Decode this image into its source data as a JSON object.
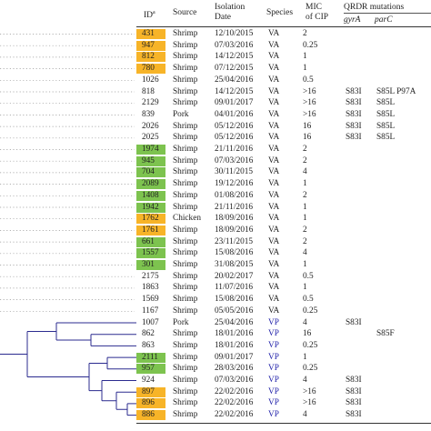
{
  "headers": {
    "id": "ID",
    "id_superscript": "a",
    "source": "Source",
    "isolation_date_line1": "Isolation",
    "isolation_date_line2": "Date",
    "species": "Species",
    "mic_line1": "MIC",
    "mic_line2": "of CIP",
    "qrdr": "QRDR mutations",
    "gyra": "gyrA",
    "parc": "parC"
  },
  "colors": {
    "orange": "#f7b428",
    "green": "#7dc34f",
    "vp_text": "#2222aa",
    "tree_line": "#2b2b8f",
    "tree_dots": "#999999"
  },
  "rows": [
    {
      "id": "431",
      "highlight": "orange",
      "source": "Shrimp",
      "date": "12/10/2015",
      "species": "VA",
      "mic": "2",
      "gyra": "",
      "parc": ""
    },
    {
      "id": "947",
      "highlight": "orange",
      "source": "Shrimp",
      "date": "07/03/2016",
      "species": "VA",
      "mic": "0.25",
      "gyra": "",
      "parc": ""
    },
    {
      "id": "812",
      "highlight": "orange",
      "source": "Shrimp",
      "date": "14/12/2015",
      "species": "VA",
      "mic": "1",
      "gyra": "",
      "parc": ""
    },
    {
      "id": "780",
      "highlight": "orange",
      "source": "Shrimp",
      "date": "07/12/2015",
      "species": "VA",
      "mic": "1",
      "gyra": "",
      "parc": ""
    },
    {
      "id": "1026",
      "highlight": "",
      "source": "Shrimp",
      "date": "25/04/2016",
      "species": "VA",
      "mic": "0.5",
      "gyra": "",
      "parc": ""
    },
    {
      "id": "818",
      "highlight": "",
      "source": "Shrimp",
      "date": "14/12/2015",
      "species": "VA",
      "mic": ">16",
      "gyra": "S83I",
      "parc": "S85L P97A"
    },
    {
      "id": "2129",
      "highlight": "",
      "source": "Shrimp",
      "date": "09/01/2017",
      "species": "VA",
      "mic": ">16",
      "gyra": "S83I",
      "parc": "S85L"
    },
    {
      "id": "839",
      "highlight": "",
      "source": "Pork",
      "date": "04/01/2016",
      "species": "VA",
      "mic": ">16",
      "gyra": "S83I",
      "parc": "S85L"
    },
    {
      "id": "2026",
      "highlight": "",
      "source": "Shrimp",
      "date": "05/12/2016",
      "species": "VA",
      "mic": "16",
      "gyra": "S83I",
      "parc": "S85L"
    },
    {
      "id": "2025",
      "highlight": "",
      "source": "Shrimp",
      "date": "05/12/2016",
      "species": "VA",
      "mic": "16",
      "gyra": "S83I",
      "parc": "S85L"
    },
    {
      "id": "1974",
      "highlight": "green",
      "source": "Shrimp",
      "date": "21/11/2016",
      "species": "VA",
      "mic": "2",
      "gyra": "",
      "parc": ""
    },
    {
      "id": "945",
      "highlight": "green",
      "source": "Shrimp",
      "date": "07/03/2016",
      "species": "VA",
      "mic": "2",
      "gyra": "",
      "parc": ""
    },
    {
      "id": "704",
      "highlight": "green",
      "source": "Shrimp",
      "date": "30/11/2015",
      "species": "VA",
      "mic": "4",
      "gyra": "",
      "parc": ""
    },
    {
      "id": "2089",
      "highlight": "green",
      "source": "Shrimp",
      "date": "19/12/2016",
      "species": "VA",
      "mic": "1",
      "gyra": "",
      "parc": ""
    },
    {
      "id": "1408",
      "highlight": "green",
      "source": "Shrimp",
      "date": "01/08/2016",
      "species": "VA",
      "mic": "2",
      "gyra": "",
      "parc": ""
    },
    {
      "id": "1942",
      "highlight": "green",
      "source": "Shrimp",
      "date": "21/11/2016",
      "species": "VA",
      "mic": "1",
      "gyra": "",
      "parc": ""
    },
    {
      "id": "1762",
      "highlight": "orange",
      "source": "Chicken",
      "date": "18/09/2016",
      "species": "VA",
      "mic": "1",
      "gyra": "",
      "parc": ""
    },
    {
      "id": "1761",
      "highlight": "orange",
      "source": "Shrimp",
      "date": "18/09/2016",
      "species": "VA",
      "mic": "2",
      "gyra": "",
      "parc": ""
    },
    {
      "id": "661",
      "highlight": "green",
      "source": "Shrimp",
      "date": "23/11/2015",
      "species": "VA",
      "mic": "2",
      "gyra": "",
      "parc": ""
    },
    {
      "id": "1557",
      "highlight": "green",
      "source": "Shrimp",
      "date": "15/08/2016",
      "species": "VA",
      "mic": "4",
      "gyra": "",
      "parc": ""
    },
    {
      "id": "301",
      "highlight": "green",
      "source": "Shrimp",
      "date": "31/08/2015",
      "species": "VA",
      "mic": "1",
      "gyra": "",
      "parc": ""
    },
    {
      "id": "2175",
      "highlight": "",
      "source": "Shrimp",
      "date": "20/02/2017",
      "species": "VA",
      "mic": "0.5",
      "gyra": "",
      "parc": ""
    },
    {
      "id": "1863",
      "highlight": "",
      "source": "Shrimp",
      "date": "11/07/2016",
      "species": "VA",
      "mic": "1",
      "gyra": "",
      "parc": ""
    },
    {
      "id": "1569",
      "highlight": "",
      "source": "Shrimp",
      "date": "15/08/2016",
      "species": "VA",
      "mic": "0.5",
      "gyra": "",
      "parc": ""
    },
    {
      "id": "1167",
      "highlight": "",
      "source": "Shrimp",
      "date": "05/05/2016",
      "species": "VA",
      "mic": "0.25",
      "gyra": "",
      "parc": ""
    },
    {
      "id": "1007",
      "highlight": "",
      "source": "Pork",
      "date": "25/04/2016",
      "species": "VP",
      "mic": "4",
      "gyra": "S83I",
      "parc": ""
    },
    {
      "id": "862",
      "highlight": "",
      "source": "Shrimp",
      "date": "18/01/2016",
      "species": "VP",
      "mic": "16",
      "gyra": "",
      "parc": "S85F"
    },
    {
      "id": "863",
      "highlight": "",
      "source": "Shrimp",
      "date": "18/01/2016",
      "species": "VP",
      "mic": "0.25",
      "gyra": "",
      "parc": ""
    },
    {
      "id": "2111",
      "highlight": "green",
      "source": "Shrimp",
      "date": "09/01/2017",
      "species": "VP",
      "mic": "1",
      "gyra": "",
      "parc": ""
    },
    {
      "id": "957",
      "highlight": "green",
      "source": "Shrimp",
      "date": "28/03/2016",
      "species": "VP",
      "mic": "0.25",
      "gyra": "",
      "parc": ""
    },
    {
      "id": "924",
      "highlight": "",
      "source": "Shrimp",
      "date": "07/03/2016",
      "species": "VP",
      "mic": "4",
      "gyra": "S83I",
      "parc": ""
    },
    {
      "id": "897",
      "highlight": "orange",
      "source": "Shrimp",
      "date": "22/02/2016",
      "species": "VP",
      "mic": ">16",
      "gyra": "S83I",
      "parc": ""
    },
    {
      "id": "896",
      "highlight": "orange",
      "source": "Shrimp",
      "date": "22/02/2016",
      "species": "VP",
      "mic": ">16",
      "gyra": "S83I",
      "parc": ""
    },
    {
      "id": "886",
      "highlight": "orange",
      "source": "Shrimp",
      "date": "22/02/2016",
      "species": "VP",
      "mic": "4",
      "gyra": "S83I",
      "parc": ""
    }
  ]
}
